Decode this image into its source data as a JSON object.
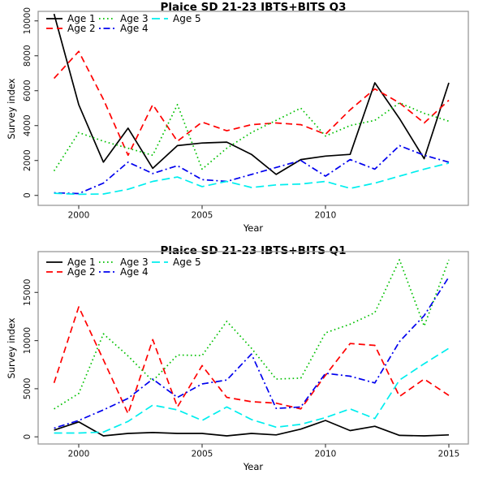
{
  "chart_data": [
    {
      "type": "line",
      "title": "Plaice SD 21-23 IBTS+BITS Q3",
      "xlabel": "Year",
      "ylabel": "Survey index",
      "x": [
        1999,
        2000,
        2001,
        2002,
        2003,
        2004,
        2005,
        2006,
        2007,
        2008,
        2009,
        2010,
        2011,
        2012,
        2013,
        2014,
        2015
      ],
      "x_ticks": [
        2000,
        2005,
        2010
      ],
      "y_ticks": [
        0,
        2000,
        4000,
        6000,
        8000,
        10000
      ],
      "ylim": [
        0,
        10500
      ],
      "grid": false,
      "legend_position": "top-left",
      "series": [
        {
          "name": "Age 1",
          "color": "#000000",
          "style": "solid",
          "values": [
            10400,
            5200,
            1900,
            3850,
            1550,
            2850,
            3000,
            3050,
            2350,
            1200,
            2050,
            2250,
            2350,
            6450,
            4400,
            2100,
            6450
          ]
        },
        {
          "name": "Age 2",
          "color": "#ff0000",
          "style": "dashed",
          "values": [
            6700,
            8250,
            5500,
            2300,
            5200,
            3100,
            4200,
            3700,
            4050,
            4150,
            4050,
            3500,
            4900,
            6100,
            5300,
            4150,
            5450
          ]
        },
        {
          "name": "Age 3",
          "color": "#00c000",
          "style": "dotted",
          "values": [
            1400,
            3600,
            3100,
            2700,
            2300,
            5200,
            1500,
            2700,
            3600,
            4300,
            5000,
            3400,
            4000,
            4300,
            5300,
            4700,
            4250
          ]
        },
        {
          "name": "Age 4",
          "color": "#0000ee",
          "style": "dashdot",
          "values": [
            150,
            100,
            700,
            1900,
            1250,
            1700,
            900,
            800,
            1200,
            1600,
            2000,
            1100,
            2050,
            1500,
            2850,
            2300,
            1900
          ]
        },
        {
          "name": "Age 5",
          "color": "#00eeee",
          "style": "longdash",
          "values": [
            120,
            60,
            80,
            350,
            800,
            1050,
            500,
            800,
            450,
            600,
            650,
            800,
            400,
            700,
            1100,
            1500,
            1850
          ]
        }
      ]
    },
    {
      "type": "line",
      "title": "Plaice SD 21-23 IBTS+BITS Q1",
      "xlabel": "Year",
      "ylabel": "Survey index",
      "x": [
        1999,
        2000,
        2001,
        2002,
        2003,
        2004,
        2005,
        2006,
        2007,
        2008,
        2009,
        2010,
        2011,
        2012,
        2013,
        2014,
        2015
      ],
      "x_ticks": [
        2000,
        2005,
        2010,
        2015
      ],
      "y_ticks": [
        0,
        5000,
        10000,
        15000
      ],
      "ylim": [
        0,
        18500
      ],
      "grid": false,
      "legend_position": "top-left",
      "series": [
        {
          "name": "Age 1",
          "color": "#000000",
          "style": "solid",
          "values": [
            700,
            1550,
            100,
            350,
            450,
            350,
            350,
            100,
            350,
            200,
            800,
            1700,
            650,
            1100,
            150,
            100,
            200
          ]
        },
        {
          "name": "Age 2",
          "color": "#ff0000",
          "style": "dashed",
          "values": [
            5600,
            13500,
            8000,
            2400,
            10100,
            3100,
            7400,
            4100,
            3650,
            3500,
            2900,
            6400,
            9700,
            9500,
            4200,
            6000,
            4300
          ]
        },
        {
          "name": "Age 3",
          "color": "#00c000",
          "style": "dotted",
          "values": [
            2900,
            4500,
            10700,
            8400,
            5800,
            8500,
            8450,
            12000,
            9200,
            6000,
            6100,
            10800,
            11700,
            12900,
            18400,
            11500,
            18400
          ]
        },
        {
          "name": "Age 4",
          "color": "#0000ee",
          "style": "dashdot",
          "values": [
            900,
            1700,
            2800,
            4000,
            6000,
            4100,
            5500,
            5900,
            8600,
            2950,
            3100,
            6600,
            6300,
            5600,
            9900,
            12600,
            16600
          ]
        },
        {
          "name": "Age 5",
          "color": "#00eeee",
          "style": "longdash",
          "values": [
            400,
            400,
            500,
            1600,
            3300,
            2800,
            1700,
            3100,
            1800,
            1000,
            1300,
            2000,
            2900,
            1900,
            5900,
            7600,
            9200
          ]
        }
      ]
    }
  ],
  "style_colors": {
    "axis_box": "#999999",
    "tick_mark": "#444444",
    "tick_label": "#111111"
  }
}
